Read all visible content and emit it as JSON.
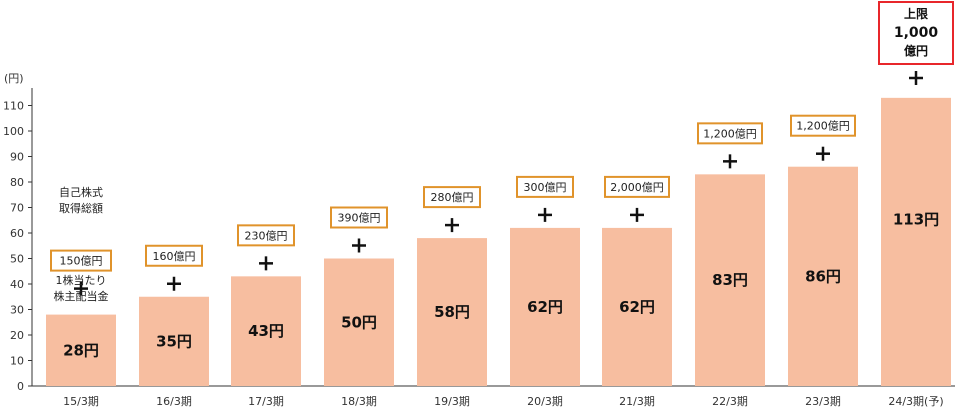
{
  "chart_data": {
    "type": "bar",
    "ylabel": "(円)",
    "ylim": [
      0,
      120
    ],
    "yticks": [
      0,
      10,
      20,
      30,
      40,
      50,
      60,
      70,
      80,
      90,
      100,
      110
    ],
    "categories": [
      "15/3期",
      "16/3期",
      "17/3期",
      "18/3期",
      "19/3期",
      "20/3期",
      "21/3期",
      "22/3期",
      "23/3期",
      "24/3期(予)"
    ],
    "values": [
      28,
      35,
      43,
      50,
      58,
      62,
      62,
      83,
      86,
      113
    ],
    "value_labels": [
      "28円",
      "35円",
      "43円",
      "50円",
      "58円",
      "62円",
      "62円",
      "83円",
      "86円",
      "113円"
    ],
    "buyback_labels": [
      "150億円",
      "160億円",
      "230億円",
      "390億円",
      "280億円",
      "300億円",
      "2,000億円",
      "1,200億円",
      "1,200億円",
      ""
    ],
    "plus_sign": "+",
    "annotation_buyback": [
      "自己株式",
      "取得総額"
    ],
    "annotation_dividend": [
      "1株当たり",
      "株主配当金"
    ],
    "cap_label": [
      "上限",
      "1,000",
      "億円"
    ],
    "grid": false,
    "colors": {
      "bar": "#f7bea0",
      "box_border": "#e0932b",
      "cap_border": "#e8262b",
      "axis": "#333333"
    }
  }
}
